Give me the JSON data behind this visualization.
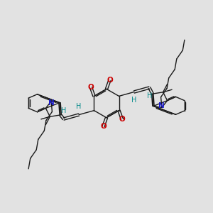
{
  "bg_color": "#e2e2e2",
  "bond_color": "#1a1a1a",
  "N_color": "#1a1acc",
  "O_color": "#cc0000",
  "H_color": "#008888",
  "figsize": [
    3.0,
    3.0
  ],
  "dpi": 100,
  "xlim": [
    0,
    10
  ],
  "ylim": [
    0,
    10
  ]
}
